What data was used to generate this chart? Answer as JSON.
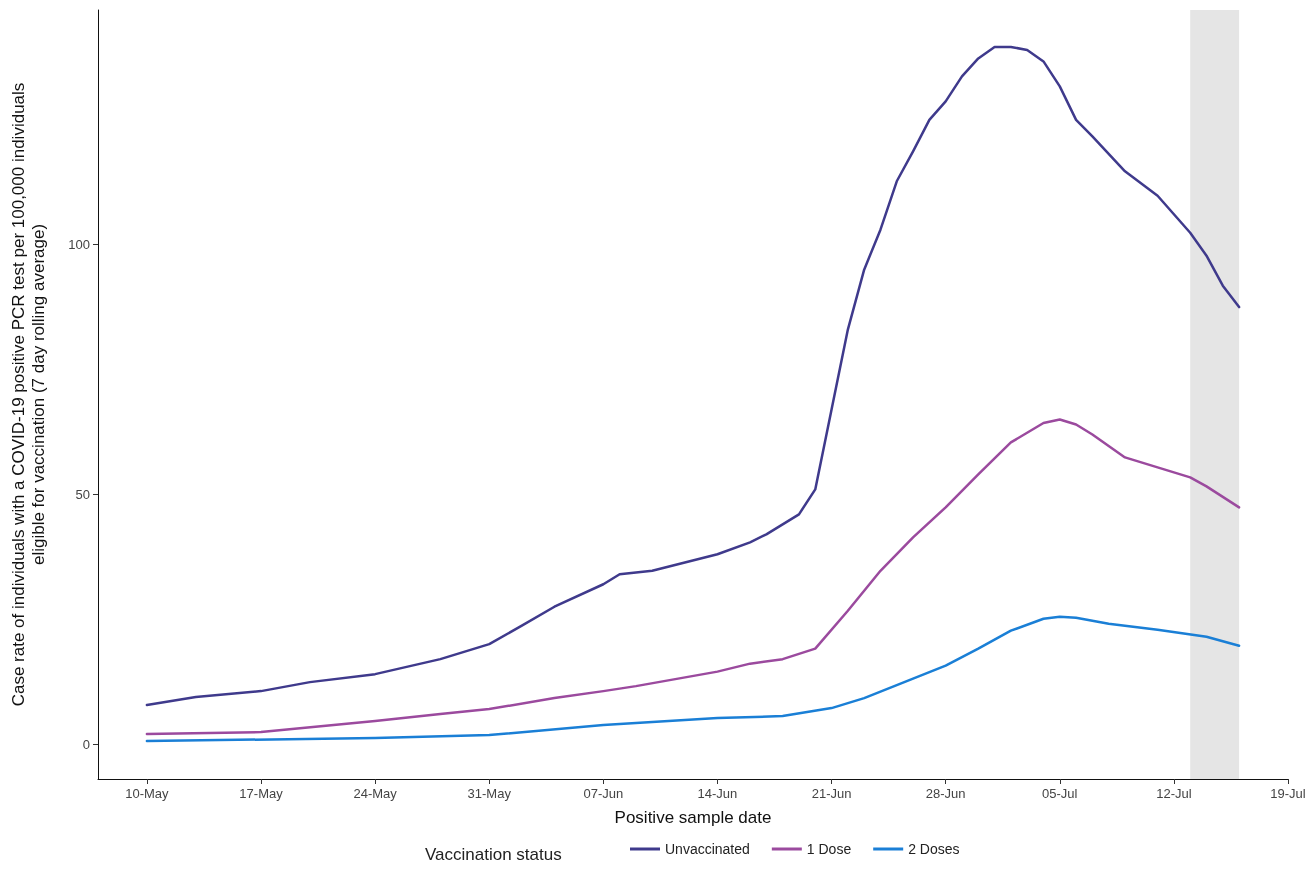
{
  "chart_data": {
    "type": "line",
    "xlabel": "Positive sample date",
    "ylabel": "Case rate of individuals with a COVID-19 positive PCR test per 100,000 individuals\neligible for vaccination (7 day rolling average)",
    "legend_title": "Vaccination status",
    "legend": "bottom",
    "grid": false,
    "marker": "none",
    "line_style": "solid",
    "xlim": [
      "--05-07",
      "--07-19"
    ],
    "xticks": [
      {
        "value": "--05-10",
        "label": "10-May"
      },
      {
        "value": "--05-17",
        "label": "17-May"
      },
      {
        "value": "--05-24",
        "label": "24-May"
      },
      {
        "value": "--05-31",
        "label": "31-May"
      },
      {
        "value": "--06-07",
        "label": "07-Jun"
      },
      {
        "value": "--06-14",
        "label": "14-Jun"
      },
      {
        "value": "--06-21",
        "label": "21-Jun"
      },
      {
        "value": "--06-28",
        "label": "28-Jun"
      },
      {
        "value": "--07-05",
        "label": "05-Jul"
      },
      {
        "value": "--07-12",
        "label": "12-Jul"
      },
      {
        "value": "--07-19",
        "label": "19-Jul"
      }
    ],
    "ylim": [
      -7,
      147
    ],
    "yticks": [
      0,
      50,
      100
    ],
    "bands": [
      {
        "axis": "x",
        "from": "--07-13",
        "to": "--07-16",
        "label": null,
        "color": "#e5e5e5"
      }
    ],
    "series": [
      {
        "name": "Unvaccinated",
        "color": "#3f3a8c",
        "x": [
          "--05-10",
          "--05-13",
          "--05-17",
          "--05-20",
          "--05-24",
          "--05-26",
          "--05-28",
          "--05-31",
          "--06-02",
          "--06-04",
          "--06-07",
          "--06-08",
          "--06-10",
          "--06-14",
          "--06-16",
          "--06-17",
          "--06-19",
          "--06-20",
          "--06-21",
          "--06-22",
          "--06-23",
          "--06-24",
          "--06-25",
          "--06-26",
          "--06-27",
          "--06-28",
          "--06-29",
          "--06-30",
          "--07-01",
          "--07-02",
          "--07-03",
          "--07-04",
          "--07-05",
          "--07-06",
          "--07-07",
          "--07-09",
          "--07-11",
          "--07-13",
          "--07-14",
          "--07-15",
          "--07-16"
        ],
        "values": [
          7.8,
          9.4,
          10.6,
          12.4,
          14,
          15.5,
          17,
          20,
          23.7,
          27.5,
          32,
          34,
          34.7,
          38,
          40.4,
          42,
          46,
          51,
          67,
          83,
          95,
          103,
          112.7,
          118.7,
          125,
          128.7,
          133.7,
          137.3,
          139.6,
          139.6,
          139,
          136.7,
          131.7,
          125,
          121.7,
          114.7,
          109.8,
          102.4,
          97.8,
          91.8,
          87.5
        ]
      },
      {
        "name": "1 Dose",
        "color": "#9b4a9e",
        "x": [
          "--05-10",
          "--05-17",
          "--05-24",
          "--05-28",
          "--05-31",
          "--06-04",
          "--06-07",
          "--06-09",
          "--06-14",
          "--06-16",
          "--06-18",
          "--06-20",
          "--06-22",
          "--06-24",
          "--06-26",
          "--06-28",
          "--06-30",
          "--07-02",
          "--07-04",
          "--07-05",
          "--07-06",
          "--07-07",
          "--07-09",
          "--07-11",
          "--07-13",
          "--07-14",
          "--07-16"
        ],
        "values": [
          2,
          2.4,
          4.6,
          6,
          7,
          9.2,
          10.6,
          11.6,
          14.5,
          16.1,
          17,
          19.1,
          26.7,
          34.7,
          41.4,
          47.4,
          54,
          60.4,
          64.3,
          65,
          64,
          62,
          57.4,
          55.4,
          53.4,
          51.6,
          47.4
        ]
      },
      {
        "name": "2 Doses",
        "color": "#1a7fd6",
        "x": [
          "--05-10",
          "--05-24",
          "--05-31",
          "--06-07",
          "--06-14",
          "--06-18",
          "--06-21",
          "--06-23",
          "--06-26",
          "--06-28",
          "--06-30",
          "--07-02",
          "--07-04",
          "--07-05",
          "--07-06",
          "--07-08",
          "--07-11",
          "--07-14",
          "--07-16"
        ],
        "values": [
          0.6,
          1.2,
          1.8,
          3.8,
          5.2,
          5.6,
          7.2,
          9.2,
          13.1,
          15.7,
          19.1,
          22.7,
          25.1,
          25.5,
          25.3,
          24.1,
          22.9,
          21.5,
          19.7
        ]
      }
    ]
  }
}
